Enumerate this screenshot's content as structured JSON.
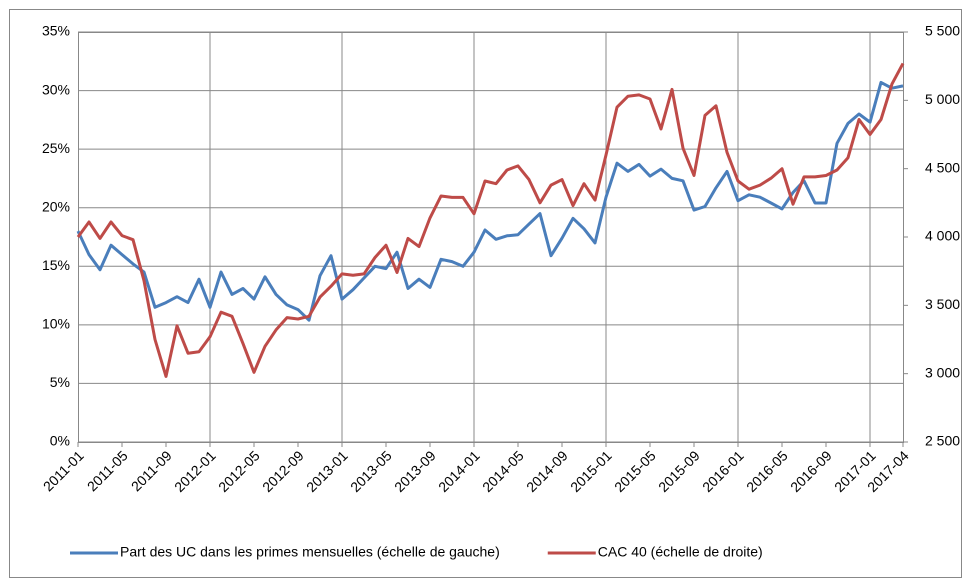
{
  "chart_data": {
    "type": "line",
    "categories": [
      "2011-01",
      null,
      null,
      null,
      "2011-05",
      null,
      null,
      null,
      "2011-09",
      null,
      null,
      null,
      "2012-01",
      null,
      null,
      null,
      "2012-05",
      null,
      null,
      null,
      "2012-09",
      null,
      null,
      null,
      "2013-01",
      null,
      null,
      null,
      "2013-05",
      null,
      null,
      null,
      "2013-09",
      null,
      null,
      null,
      "2014-01",
      null,
      null,
      null,
      "2014-05",
      null,
      null,
      null,
      "2014-09",
      null,
      null,
      null,
      "2015-01",
      null,
      null,
      null,
      "2015-05",
      null,
      null,
      null,
      "2015-09",
      null,
      null,
      null,
      "2016-01",
      null,
      null,
      null,
      "2016-05",
      null,
      null,
      null,
      "2016-09",
      null,
      null,
      null,
      "2017-01",
      null,
      null,
      "2017-04"
    ],
    "series": [
      {
        "name": "Part des UC dans les primes mensuelles (échelle de gauche)",
        "color": "#4a7ebb",
        "values": [
          18.0,
          16.0,
          14.7,
          16.8,
          16.0,
          15.2,
          14.5,
          11.5,
          11.9,
          12.4,
          11.9,
          13.9,
          11.5,
          14.5,
          12.6,
          13.1,
          12.2,
          14.1,
          12.6,
          11.7,
          11.3,
          10.4,
          14.2,
          15.9,
          12.2,
          13.0,
          14.0,
          15.0,
          14.8,
          16.2,
          13.1,
          13.9,
          13.2,
          15.6,
          15.4,
          15.0,
          16.2,
          18.1,
          17.3,
          17.6,
          17.7,
          18.6,
          19.5,
          15.9,
          17.4,
          19.1,
          18.2,
          17.0,
          20.9,
          23.8,
          23.1,
          23.7,
          22.7,
          23.3,
          22.5,
          22.3,
          19.8,
          20.1,
          21.7,
          23.1,
          20.6,
          21.1,
          20.9,
          20.4,
          19.9,
          21.3,
          22.3,
          20.4,
          20.4,
          25.5,
          27.2,
          28.0,
          27.3,
          30.7,
          30.2,
          30.4
        ]
      },
      {
        "name": "CAC 40 (échelle de droite)",
        "color": "#be4b48",
        "axis": "y2",
        "values": [
          4000,
          4110,
          3990,
          4110,
          4010,
          3980,
          3680,
          3250,
          2980,
          3350,
          3150,
          3160,
          3270,
          3450,
          3420,
          3220,
          3010,
          3200,
          3320,
          3410,
          3400,
          3420,
          3560,
          3640,
          3730,
          3720,
          3730,
          3850,
          3940,
          3740,
          3990,
          3930,
          4140,
          4300,
          4290,
          4290,
          4170,
          4410,
          4390,
          4490,
          4520,
          4420,
          4250,
          4380,
          4420,
          4230,
          4390,
          4270,
          4600,
          4950,
          5030,
          5040,
          5010,
          4790,
          5080,
          4650,
          4450,
          4890,
          4960,
          4620,
          4410,
          4350,
          4380,
          4430,
          4500,
          4240,
          4440,
          4440,
          4450,
          4490,
          4580,
          4860,
          4750,
          4860,
          5120,
          5270
        ]
      }
    ],
    "ylim": [
      0,
      35
    ],
    "yticks": [
      {
        "value": 0,
        "label": "0%"
      },
      {
        "value": 5,
        "label": "5%"
      },
      {
        "value": 10,
        "label": "10%"
      },
      {
        "value": 15,
        "label": "15%"
      },
      {
        "value": 20,
        "label": "20%"
      },
      {
        "value": 25,
        "label": "25%"
      },
      {
        "value": 30,
        "label": "30%"
      },
      {
        "value": 35,
        "label": "35%"
      }
    ],
    "y2lim": [
      2500,
      5500
    ],
    "y2ticks": [
      {
        "value": 2500,
        "label": "2 500"
      },
      {
        "value": 3000,
        "label": "3 000"
      },
      {
        "value": 3500,
        "label": "3 500"
      },
      {
        "value": 4000,
        "label": "4 000"
      },
      {
        "value": 4500,
        "label": "4 500"
      },
      {
        "value": 5000,
        "label": "5 000"
      },
      {
        "value": 5500,
        "label": "5 500"
      }
    ],
    "grid": true,
    "legend": "bottom"
  }
}
